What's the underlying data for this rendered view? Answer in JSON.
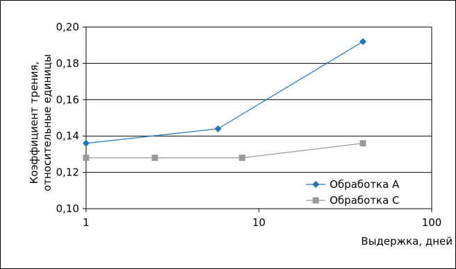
{
  "chart_data": {
    "type": "line",
    "x_scale": "log",
    "xlim": [
      1,
      100
    ],
    "ylim": [
      0.1,
      0.2
    ],
    "grid": "horizontal",
    "legend_position": "bottom-right",
    "xlabel": "Выдержка, дней",
    "ylabel_lines": [
      "Коэффициент трения,",
      "относительные единицы"
    ],
    "x_ticks": [
      {
        "value": 1,
        "label": "1"
      },
      {
        "value": 10,
        "label": "10"
      },
      {
        "value": 100,
        "label": "100"
      }
    ],
    "y_ticks": [
      {
        "value": 0.1,
        "label": "0,10"
      },
      {
        "value": 0.12,
        "label": "0,12"
      },
      {
        "value": 0.14,
        "label": "0,14"
      },
      {
        "value": 0.16,
        "label": "0,16"
      },
      {
        "value": 0.18,
        "label": "0,18"
      },
      {
        "value": 0.2,
        "label": "0,20"
      }
    ],
    "series": [
      {
        "name": "Обработка А",
        "color": "#1f74b8",
        "marker": "diamond",
        "points": [
          {
            "x": 1,
            "y": 0.136
          },
          {
            "x": 5.8,
            "y": 0.144
          },
          {
            "x": 40,
            "y": 0.192
          }
        ]
      },
      {
        "name": "Обработка С",
        "color": "#999999",
        "marker": "square",
        "points": [
          {
            "x": 1,
            "y": 0.128
          },
          {
            "x": 2.5,
            "y": 0.128
          },
          {
            "x": 8,
            "y": 0.128
          },
          {
            "x": 40,
            "y": 0.136
          }
        ]
      }
    ]
  }
}
